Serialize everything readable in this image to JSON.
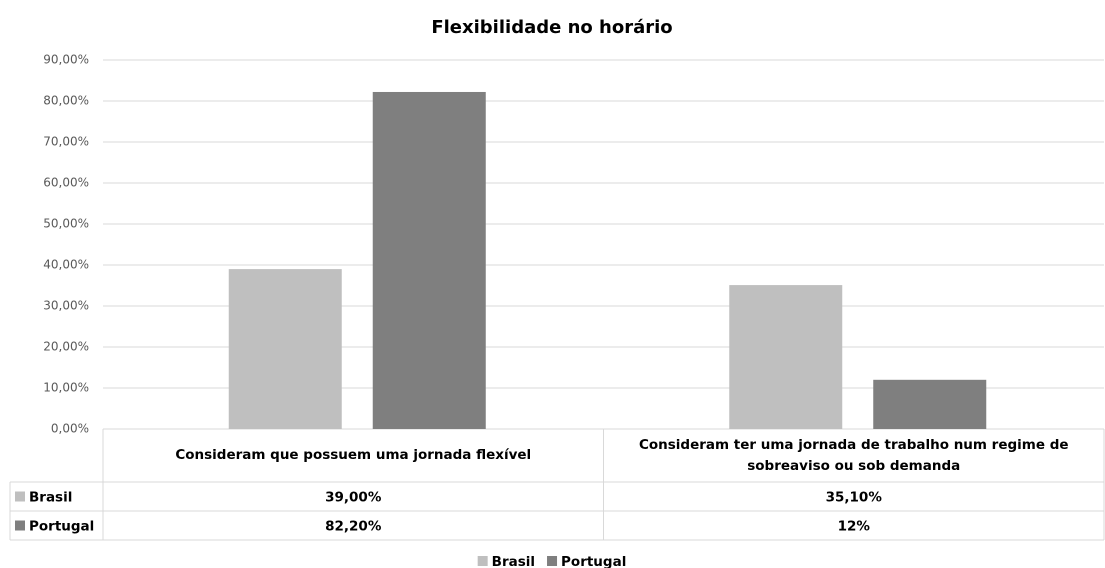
{
  "chart_data": {
    "type": "bar",
    "title": "Flexibilidade no horário",
    "categories": [
      "Consideram que possuem uma jornada flexível",
      "Consideram ter uma jornada de trabalho num regime de sobreaviso ou sob demanda"
    ],
    "series": [
      {
        "name": "Brasil",
        "color": "#bfbfbf",
        "values": [
          39,
          35.1
        ],
        "value_labels": [
          "39,00%",
          "35,10%"
        ]
      },
      {
        "name": "Portugal",
        "color": "#7f7f7f",
        "values": [
          82.2,
          12
        ],
        "value_labels": [
          "82,20%",
          "12%"
        ]
      }
    ],
    "ylim": [
      0,
      90
    ],
    "yticks": [
      {
        "value": 0,
        "label": "0,00%"
      },
      {
        "value": 10,
        "label": "10,00%"
      },
      {
        "value": 20,
        "label": "20,00%"
      },
      {
        "value": 30,
        "label": "30,00%"
      },
      {
        "value": 40,
        "label": "40,00%"
      },
      {
        "value": 50,
        "label": "50,00%"
      },
      {
        "value": 60,
        "label": "60,00%"
      },
      {
        "value": 70,
        "label": "70,00%"
      },
      {
        "value": 80,
        "label": "80,00%"
      },
      {
        "value": 90,
        "label": "90,00%"
      }
    ],
    "grid": true,
    "legend": "bottom"
  }
}
